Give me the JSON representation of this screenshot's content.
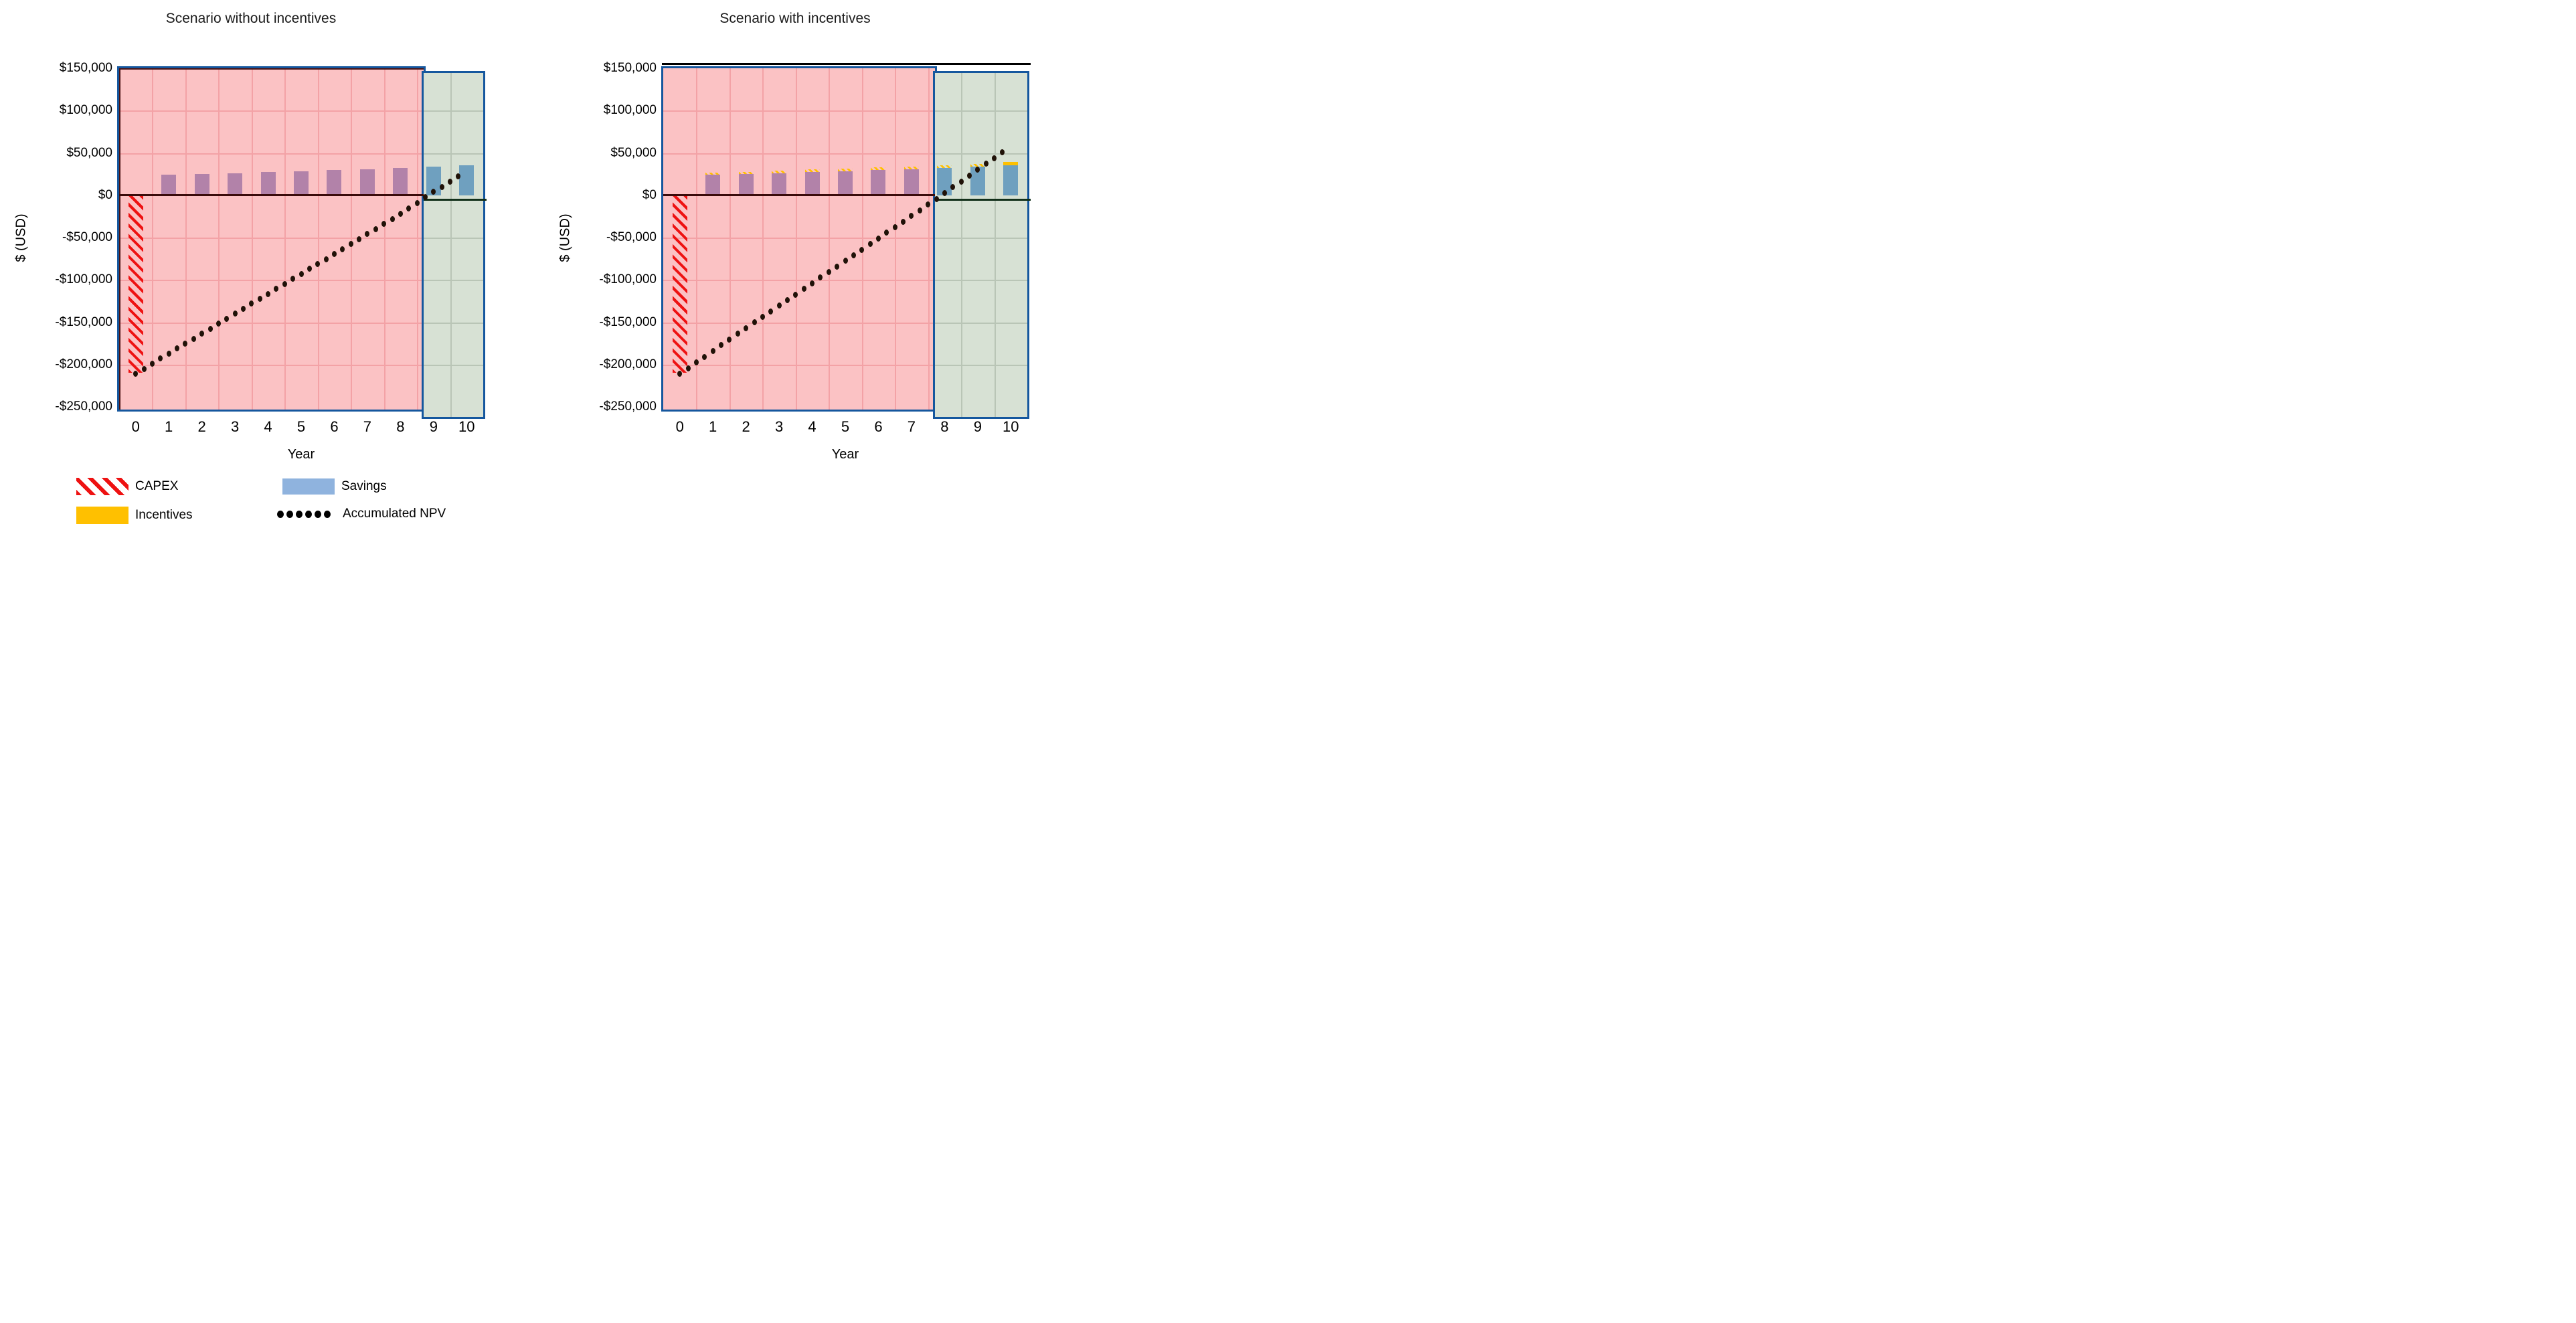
{
  "axis": {
    "ylabel": "$ (USD)",
    "xlabel": "Year",
    "ytick_labels": [
      "$150,000",
      "$100,000",
      "$50,000",
      "$0",
      "-$50,000",
      "-$100,000",
      "-$150,000",
      "-$200,000",
      "-$250,000"
    ],
    "xtick_labels": [
      "0",
      "1",
      "2",
      "3",
      "4",
      "5",
      "6",
      "7",
      "8",
      "9",
      "10"
    ]
  },
  "legend": {
    "items": [
      {
        "label": "CAPEX",
        "swatch": "hatched-red"
      },
      {
        "label": "Savings",
        "swatch": "solid-blue"
      },
      {
        "label": "Incentives",
        "swatch": "solid-yellow"
      },
      {
        "label": "Accumulated NPV",
        "swatch": "dotted-black"
      }
    ]
  },
  "colors": {
    "pink_region_bg": "#fbc2c4",
    "pink_gridline": "#f3a2a6",
    "green_region_bg": "#d7e1d4",
    "green_gridline": "#b9c5b6",
    "frame_blue": "#15579e",
    "bar_purple": "#b282a9",
    "bar_blue": "#6fa0bf",
    "legend_savings_blue": "#8fb3de",
    "incentive_yellow": "#ffc000",
    "capex_red": "#ee1212",
    "zero_line_pink_region": "#3a0b0b",
    "zero_line_green_region": "#12301a",
    "npv_dot": "#201208",
    "axis_inner_dark": "#4a1414"
  },
  "chart_data": [
    {
      "type": "bar",
      "title": "Scenario without incentives",
      "xlabel": "Year",
      "ylabel": "$ (USD)",
      "x": [
        0,
        1,
        2,
        3,
        4,
        5,
        6,
        7,
        8,
        9,
        10
      ],
      "ylim": [
        -250000,
        150000
      ],
      "ytick_step": 50000,
      "grid": true,
      "payback_boundary_year": 8.7,
      "top_border_black": false,
      "inner_axis_lines": true,
      "regions": [
        {
          "name": "negative-npv-period",
          "from_year": -0.5,
          "to_year": 8.7,
          "fill": "pink"
        },
        {
          "name": "positive-npv-period",
          "from_year": 8.7,
          "to_year": 10.5,
          "fill": "green"
        }
      ],
      "series": [
        {
          "name": "CAPEX",
          "type": "bar",
          "pattern": "hatched-red",
          "values": [
            -210000,
            0,
            0,
            0,
            0,
            0,
            0,
            0,
            0,
            0,
            0
          ]
        },
        {
          "name": "Savings",
          "type": "bar",
          "values": [
            0,
            24000,
            25000,
            26000,
            27500,
            28500,
            30000,
            31000,
            32500,
            34000,
            35500
          ]
        },
        {
          "name": "Incentives",
          "type": "bar",
          "stacked_on": "Savings",
          "solid_years": [],
          "values": [
            0,
            0,
            0,
            0,
            0,
            0,
            0,
            0,
            0,
            0,
            0
          ]
        },
        {
          "name": "Accumulated NPV",
          "type": "dotted-line",
          "dot_interval_years": 0.25,
          "last_dot_year": 9.75,
          "values": [
            -211000,
            -187000,
            -163500,
            -140000,
            -116500,
            -93000,
            -69500,
            -46000,
            -22000,
            4000,
            28000
          ]
        }
      ]
    },
    {
      "type": "bar",
      "title": "Scenario with incentives",
      "xlabel": "Year",
      "ylabel": "$ (USD)",
      "x": [
        0,
        1,
        2,
        3,
        4,
        5,
        6,
        7,
        8,
        9,
        10
      ],
      "ylim": [
        -250000,
        150000
      ],
      "ytick_step": 50000,
      "grid": true,
      "payback_boundary_year": 7.7,
      "top_border_black": true,
      "inner_axis_lines": false,
      "regions": [
        {
          "name": "negative-npv-period",
          "from_year": -0.5,
          "to_year": 7.7,
          "fill": "pink"
        },
        {
          "name": "positive-npv-period",
          "from_year": 7.7,
          "to_year": 10.5,
          "fill": "green"
        }
      ],
      "series": [
        {
          "name": "CAPEX",
          "type": "bar",
          "pattern": "hatched-red",
          "values": [
            -210000,
            0,
            0,
            0,
            0,
            0,
            0,
            0,
            0,
            0,
            0
          ]
        },
        {
          "name": "Savings",
          "type": "bar",
          "values": [
            0,
            24000,
            25000,
            26000,
            27500,
            28500,
            30000,
            31000,
            32500,
            34000,
            35500
          ]
        },
        {
          "name": "Incentives",
          "type": "bar",
          "stacked_on": "Savings",
          "solid_years": [
            10
          ],
          "values": [
            0,
            2500,
            2500,
            2500,
            2500,
            2500,
            2500,
            2500,
            2500,
            2500,
            3500
          ]
        },
        {
          "name": "Accumulated NPV",
          "type": "dotted-line",
          "dot_interval_years": 0.25,
          "last_dot_year": 9.75,
          "values": [
            -211000,
            -184000,
            -157000,
            -130500,
            -104000,
            -77500,
            -51000,
            -24500,
            2500,
            30000,
            58000
          ]
        }
      ]
    }
  ]
}
